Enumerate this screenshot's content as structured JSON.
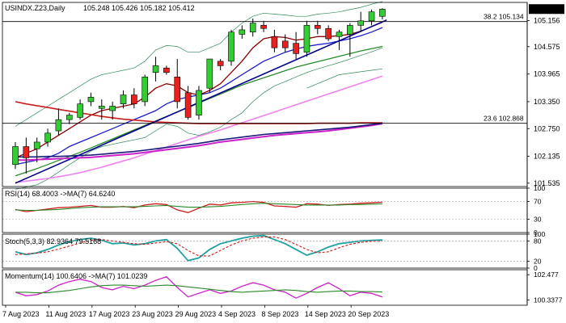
{
  "chart_data": {
    "type": "candlestick",
    "symbol_header": "USINDX.Z23,Daily",
    "ohlc_header": "105.248 105.426 105.182 105.412",
    "last_price": "105.412",
    "x_tick_labels": [
      "7 Aug 2023",
      "11 Aug 2023",
      "17 Aug 2023",
      "23 Aug 2023",
      "29 Aug 2023",
      "4 Sep 2023",
      "8 Sep 2023",
      "14 Sep 2023",
      "20 Sep 2023"
    ],
    "x_tick_bar_index": [
      0,
      4,
      8,
      12,
      16,
      20,
      24,
      28,
      32
    ],
    "price_axis_labels": [
      "105.156",
      "104.575",
      "103.965",
      "103.350",
      "102.750",
      "102.135",
      "101.535"
    ],
    "price_axis_values": [
      105.156,
      104.575,
      103.965,
      103.35,
      102.75,
      102.135,
      101.535
    ],
    "price_ylim": [
      101.46,
      105.56
    ],
    "candles": [
      {
        "o": 101.95,
        "h": 102.45,
        "l": 101.85,
        "c": 102.35
      },
      {
        "o": 102.35,
        "h": 102.55,
        "l": 101.75,
        "c": 102.1
      },
      {
        "o": 102.3,
        "h": 102.55,
        "l": 102.0,
        "c": 102.45
      },
      {
        "o": 102.45,
        "h": 102.75,
        "l": 102.35,
        "c": 102.65
      },
      {
        "o": 102.7,
        "h": 103.2,
        "l": 102.6,
        "c": 102.95
      },
      {
        "o": 102.95,
        "h": 103.1,
        "l": 102.85,
        "c": 103.05
      },
      {
        "o": 103.0,
        "h": 103.4,
        "l": 102.95,
        "c": 103.3
      },
      {
        "o": 103.35,
        "h": 103.55,
        "l": 103.25,
        "c": 103.45
      },
      {
        "o": 103.2,
        "h": 103.4,
        "l": 102.95,
        "c": 103.25
      },
      {
        "o": 103.15,
        "h": 103.35,
        "l": 102.95,
        "c": 103.25
      },
      {
        "o": 103.3,
        "h": 103.6,
        "l": 103.2,
        "c": 103.5
      },
      {
        "o": 103.5,
        "h": 103.65,
        "l": 103.2,
        "c": 103.3
      },
      {
        "o": 103.35,
        "h": 103.95,
        "l": 103.25,
        "c": 103.9
      },
      {
        "o": 104.0,
        "h": 104.35,
        "l": 103.8,
        "c": 104.15
      },
      {
        "o": 104.1,
        "h": 104.15,
        "l": 103.95,
        "c": 104.0
      },
      {
        "o": 103.9,
        "h": 104.3,
        "l": 103.2,
        "c": 103.35
      },
      {
        "o": 103.55,
        "h": 103.7,
        "l": 102.95,
        "c": 103.0
      },
      {
        "o": 103.05,
        "h": 103.7,
        "l": 102.95,
        "c": 103.6
      },
      {
        "o": 103.65,
        "h": 104.3,
        "l": 103.55,
        "c": 104.3
      },
      {
        "o": 104.25,
        "h": 104.3,
        "l": 104.05,
        "c": 104.15
      },
      {
        "o": 104.25,
        "h": 104.95,
        "l": 104.15,
        "c": 104.9
      },
      {
        "o": 104.85,
        "h": 105.05,
        "l": 104.75,
        "c": 104.95
      },
      {
        "o": 104.9,
        "h": 105.2,
        "l": 104.8,
        "c": 105.1
      },
      {
        "o": 105.05,
        "h": 105.15,
        "l": 104.9,
        "c": 104.98
      },
      {
        "o": 104.8,
        "h": 104.95,
        "l": 104.45,
        "c": 104.55
      },
      {
        "o": 104.7,
        "h": 104.85,
        "l": 104.45,
        "c": 104.55
      },
      {
        "o": 104.65,
        "h": 104.9,
        "l": 104.3,
        "c": 104.42
      },
      {
        "o": 104.45,
        "h": 105.15,
        "l": 104.35,
        "c": 105.05
      },
      {
        "o": 105.05,
        "h": 105.15,
        "l": 104.85,
        "c": 104.98
      },
      {
        "o": 104.98,
        "h": 105.05,
        "l": 104.7,
        "c": 104.75
      },
      {
        "o": 104.8,
        "h": 104.95,
        "l": 104.5,
        "c": 104.9
      },
      {
        "o": 104.85,
        "h": 105.1,
        "l": 104.35,
        "c": 105.05
      },
      {
        "o": 105.05,
        "h": 105.35,
        "l": 104.9,
        "c": 105.15
      },
      {
        "o": 105.15,
        "h": 105.4,
        "l": 105.05,
        "c": 105.35
      },
      {
        "o": 105.25,
        "h": 105.43,
        "l": 105.18,
        "c": 105.41
      }
    ],
    "overlays": [
      {
        "label": "38.2 105.134",
        "value": 105.134
      },
      {
        "label": "23.6 102.868",
        "value": 102.868
      }
    ],
    "ma_short": [
      102.1,
      102.2,
      102.3,
      102.45,
      102.6,
      102.75,
      102.9,
      103.05,
      103.15,
      103.2,
      103.25,
      103.3,
      103.45,
      103.65,
      103.75,
      103.7,
      103.55,
      103.5,
      103.6,
      103.75,
      104.0,
      104.25,
      104.55,
      104.75,
      104.8,
      104.78,
      104.72,
      104.75,
      104.8,
      104.8,
      104.82,
      104.85,
      104.92,
      105.02,
      105.12
    ],
    "ma_mid": [
      101.95,
      102.0,
      102.05,
      102.1,
      102.2,
      102.35,
      102.45,
      102.55,
      102.65,
      102.75,
      102.85,
      102.95,
      103.05,
      103.15,
      103.3,
      103.4,
      103.45,
      103.5,
      103.55,
      103.65,
      103.8,
      103.95,
      104.1,
      104.25,
      104.35,
      104.45,
      104.52,
      104.58,
      104.62,
      104.65,
      104.7,
      104.75,
      104.82,
      104.9,
      105.0
    ],
    "ma_long": [
      101.7,
      101.78,
      101.86,
      101.95,
      102.04,
      102.13,
      102.22,
      102.32,
      102.42,
      102.52,
      102.62,
      102.72,
      102.82,
      102.92,
      103.02,
      103.12,
      103.22,
      103.32,
      103.42,
      103.52,
      103.62,
      103.72,
      103.8,
      103.88,
      103.96,
      104.04,
      104.12,
      104.18,
      104.24,
      104.3,
      104.36,
      104.42,
      104.48,
      104.53,
      104.58
    ],
    "ma_pink": [
      101.55,
      101.58,
      101.61,
      101.64,
      101.68,
      101.72,
      101.77,
      101.83,
      101.89,
      101.96,
      102.03,
      102.1,
      102.18,
      102.26,
      102.34,
      102.42,
      102.5,
      102.58,
      102.65,
      102.72,
      102.8,
      102.88,
      102.96,
      103.04,
      103.12,
      103.2,
      103.28,
      103.36,
      103.44,
      103.52,
      103.6,
      103.68,
      103.76,
      103.84,
      103.92
    ],
    "ma_red": [
      103.35,
      103.3,
      103.26,
      103.22,
      103.18,
      103.14,
      103.1,
      103.06,
      103.02,
      102.99,
      102.96,
      102.94,
      102.92,
      102.9,
      102.89,
      102.88,
      102.87,
      102.86,
      102.86,
      102.86,
      102.86,
      102.86,
      102.86,
      102.86,
      102.86,
      102.86,
      102.86,
      102.86,
      102.87,
      102.87,
      102.87,
      102.87,
      102.88,
      102.88,
      102.88
    ],
    "ma_navy": [
      102.12,
      102.12,
      102.12,
      102.13,
      102.13,
      102.14,
      102.15,
      102.16,
      102.18,
      102.2,
      102.22,
      102.24,
      102.27,
      102.3,
      102.33,
      102.36,
      102.39,
      102.42,
      102.46,
      102.5,
      102.53,
      102.56,
      102.59,
      102.62,
      102.64,
      102.66,
      102.68,
      102.7,
      102.72,
      102.74,
      102.76,
      102.78,
      102.81,
      102.84,
      102.87
    ],
    "ma_magenta": [
      102.05,
      102.05,
      102.06,
      102.07,
      102.08,
      102.09,
      102.1,
      102.11,
      102.13,
      102.15,
      102.17,
      102.19,
      102.22,
      102.25,
      102.28,
      102.31,
      102.34,
      102.37,
      102.41,
      102.45,
      102.48,
      102.51,
      102.54,
      102.57,
      102.6,
      102.62,
      102.64,
      102.66,
      102.68,
      102.7,
      102.73,
      102.76,
      102.79,
      102.82,
      102.86
    ],
    "bb_upper": [
      102.8,
      102.95,
      103.1,
      103.25,
      103.4,
      103.55,
      103.7,
      103.85,
      103.95,
      104.0,
      104.05,
      104.1,
      104.25,
      104.5,
      104.6,
      104.58,
      104.45,
      104.45,
      104.55,
      104.65,
      104.9,
      105.1,
      105.25,
      105.32,
      105.3,
      105.28,
      105.25,
      105.25,
      105.3,
      105.32,
      105.35,
      105.4,
      105.45,
      105.52,
      105.58
    ],
    "bb_lower": [
      101.4,
      101.45,
      101.5,
      101.62,
      101.78,
      101.95,
      102.1,
      102.25,
      102.35,
      102.4,
      102.45,
      102.5,
      102.55,
      102.7,
      102.85,
      102.8,
      102.65,
      102.6,
      102.68,
      102.78,
      102.95,
      103.1,
      103.35,
      103.55,
      103.7,
      103.8,
      103.9,
      104.0,
      104.08,
      104.15,
      104.22,
      104.3,
      104.38,
      104.46,
      104.55
    ],
    "trendline": {
      "from": [
        0,
        101.535
      ],
      "to": [
        35,
        105.17
      ]
    },
    "green_envelope": {
      "points": [
        [
          27,
          103.65
        ],
        [
          30,
          103.95
        ],
        [
          33,
          104.05
        ],
        [
          34,
          104.08
        ]
      ]
    },
    "rsi": {
      "label": "RSI(14) 68.4003 ->MA(7) 64.6240",
      "axis_labels": [
        "100",
        "70",
        "30",
        "0"
      ],
      "axis_values": [
        100,
        70,
        30,
        0
      ],
      "ylim": [
        0,
        100
      ],
      "main": [
        52,
        47,
        50,
        53,
        56,
        57,
        59,
        61,
        57,
        57,
        59,
        56,
        62,
        65,
        63,
        51,
        45,
        55,
        64,
        62,
        67,
        68,
        70,
        68,
        60,
        59,
        57,
        65,
        64,
        61,
        63,
        64,
        66,
        67,
        68.4
      ],
      "ma": [
        51,
        50,
        50,
        51,
        52,
        54,
        56,
        57,
        58,
        58,
        58,
        58,
        59,
        60,
        61,
        59,
        57,
        57,
        58,
        59,
        61,
        63,
        65,
        66,
        65,
        64,
        63,
        62,
        62,
        62,
        62,
        63,
        63,
        64,
        64.6
      ]
    },
    "stoch": {
      "label": "Stoch(5,3,3) 82.9364 79.5168",
      "axis_labels": [
        "100",
        "80",
        "20",
        "0"
      ],
      "axis_values": [
        100,
        80,
        20,
        0
      ],
      "ylim": [
        0,
        100
      ],
      "main": [
        48,
        40,
        45,
        55,
        68,
        78,
        84,
        88,
        82,
        72,
        74,
        68,
        72,
        80,
        84,
        58,
        22,
        30,
        55,
        72,
        80,
        88,
        94,
        96,
        84,
        72,
        55,
        38,
        48,
        62,
        72,
        76,
        80,
        82,
        82.9
      ],
      "signal": [
        40,
        42,
        44,
        48,
        56,
        65,
        74,
        82,
        84,
        80,
        76,
        72,
        70,
        74,
        78,
        72,
        52,
        36,
        36,
        52,
        68,
        80,
        88,
        92,
        92,
        84,
        70,
        55,
        45,
        48,
        60,
        70,
        76,
        79,
        79.5
      ]
    },
    "momentum": {
      "label": "Momentum(14) 100.6406 ->MA(7) 101.0239",
      "axis_labels": [
        "102.477",
        "100.3377"
      ],
      "axis_values": [
        102.477,
        100.3377
      ],
      "ylim": [
        99.9,
        102.9
      ],
      "main": [
        101.0,
        100.7,
        100.8,
        101.1,
        101.6,
        101.9,
        102.1,
        101.9,
        101.4,
        101.2,
        101.5,
        101.3,
        101.6,
        102.0,
        102.3,
        101.4,
        100.6,
        100.9,
        101.2,
        100.9,
        101.1,
        101.5,
        101.8,
        101.6,
        101.2,
        101.0,
        100.5,
        100.9,
        101.4,
        101.8,
        101.3,
        100.7,
        101.0,
        100.9,
        100.6
      ],
      "ma": [
        101.0,
        101.0,
        100.95,
        100.95,
        101.05,
        101.15,
        101.3,
        101.45,
        101.55,
        101.6,
        101.6,
        101.55,
        101.5,
        101.55,
        101.6,
        101.55,
        101.45,
        101.35,
        101.25,
        101.15,
        101.05,
        101.0,
        101.05,
        101.1,
        101.15,
        101.2,
        101.15,
        101.05,
        101.0,
        101.05,
        101.1,
        101.1,
        101.05,
        101.05,
        101.02
      ]
    },
    "colors": {
      "up_candle": "#33cc33",
      "down_candle": "#e8201e",
      "candle_wick": "#000000",
      "ma_short": "#8b0000",
      "ma_mid": "#1c1cc8",
      "ma_long": "#2a8a2a",
      "ma_pink": "#ee82ee",
      "ma_red": "#cc1a1a",
      "ma_navy": "#1a1a7a",
      "ma_magenta": "#cc22cc",
      "bb_line": "#2e8b57",
      "trendline": "#00008b",
      "level_line": "#000000",
      "rsi_main": "#cc1a1a",
      "rsi_ma": "#2a8a2a",
      "stoch_main": "#20a0a0",
      "stoch_signal": "#cc1a1a",
      "mom_main": "#cc22cc",
      "mom_ma": "#2a8a2a",
      "last_price_box": "#000000"
    }
  }
}
